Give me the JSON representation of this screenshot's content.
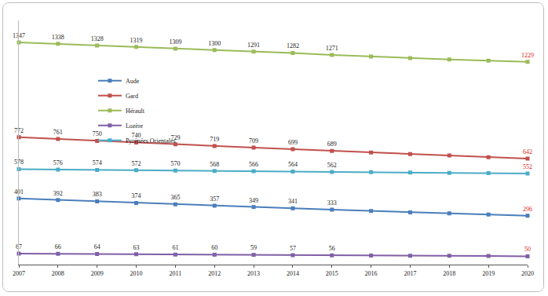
{
  "chart_data": {
    "type": "line",
    "x": [
      2007,
      2008,
      2009,
      2010,
      2011,
      2012,
      2013,
      2014,
      2015,
      2016,
      2017,
      2018,
      2019,
      2020
    ],
    "xlim": [
      2007,
      2020
    ],
    "xticks": [
      2007,
      2008,
      2009,
      2010,
      2011,
      2012,
      2013,
      2014,
      2015,
      2016,
      2017,
      2018,
      2019,
      2020
    ],
    "ylim": [
      0,
      1480
    ],
    "yticks": [],
    "tick_labels": "x",
    "grid": false,
    "legend": "top right",
    "data_labels": true,
    "marker": "square",
    "series": [
      {
        "name": "Aude",
        "color": "#4a7ebb",
        "values": [
          401,
          392,
          383,
          374,
          365,
          357,
          349,
          341,
          333,
          325,
          317,
          310,
          303,
          296
        ],
        "value_labels": [
          "401",
          "392",
          "383",
          "374",
          "365",
          "357",
          "349",
          "341",
          "333",
          null,
          null,
          null,
          null,
          "296"
        ]
      },
      {
        "name": "Gard",
        "color": "#c0504d",
        "values": [
          772,
          761,
          750,
          740,
          729,
          719,
          709,
          699,
          689,
          679,
          670,
          661,
          651,
          642
        ],
        "value_labels": [
          "772",
          "761",
          "750",
          "740",
          "729",
          "719",
          "709",
          "699",
          "689",
          null,
          null,
          null,
          null,
          "642"
        ]
      },
      {
        "name": "Hérault",
        "color": "#9bbb59",
        "values": [
          1347,
          1338,
          1328,
          1319,
          1309,
          1300,
          1291,
          1282,
          1271,
          1261,
          1252,
          1243,
          1236,
          1229
        ],
        "value_labels": [
          "1347",
          "1338",
          "1328",
          "1319",
          "1309",
          "1300",
          "1291",
          "1282",
          "1271",
          null,
          null,
          null,
          null,
          "1229"
        ]
      },
      {
        "name": "Lozère",
        "color": "#7f5fa6",
        "values": [
          67,
          66,
          64,
          63,
          61,
          60,
          59,
          57,
          56,
          55,
          54,
          53,
          52,
          50
        ],
        "value_labels": [
          "67",
          "66",
          "64",
          "63",
          "61",
          "60",
          "59",
          "57",
          "56",
          null,
          null,
          null,
          null,
          "50"
        ]
      },
      {
        "name": "Pyrénées Orientales",
        "color": "#4bacc6",
        "values": [
          578,
          576,
          574,
          572,
          570,
          568,
          566,
          564,
          562,
          560,
          558,
          556,
          554,
          552
        ],
        "value_labels": [
          "578",
          "576",
          "574",
          "572",
          "570",
          "568",
          "566",
          "564",
          "562",
          null,
          null,
          null,
          null,
          "552"
        ]
      }
    ]
  }
}
